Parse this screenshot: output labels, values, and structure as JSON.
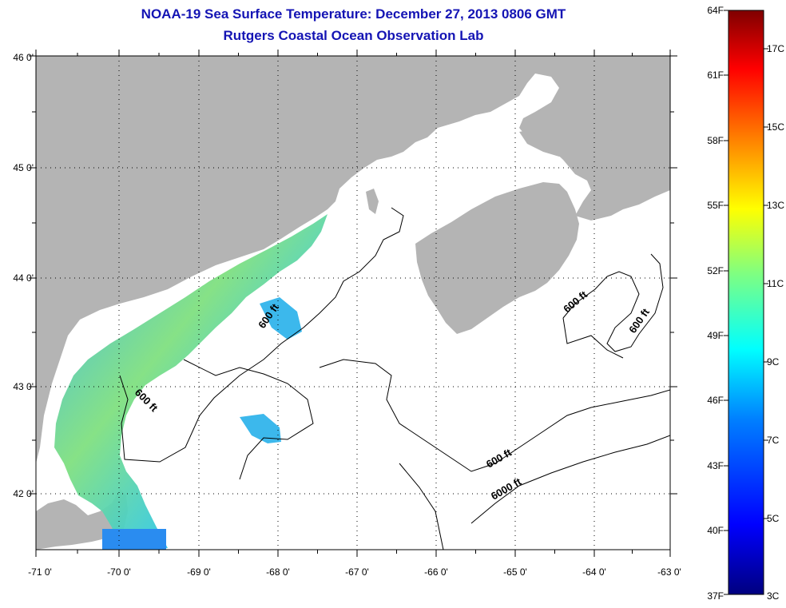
{
  "title": {
    "line1": "NOAA-19 Sea Surface Temperature:  December 27, 2013 0806 GMT",
    "line2": "Rutgers Coastal Ocean Observation Lab"
  },
  "map": {
    "longitude_labels": [
      "-71 0'",
      "-70 0'",
      "-69 0'",
      "-68 0'",
      "-67 0'",
      "-66 0'",
      "-65 0'",
      "-64 0'",
      "-63 0'"
    ],
    "latitude_labels": [
      "46 0'",
      "45 0'",
      "44 0'",
      "43 0'",
      "42 0'"
    ],
    "contour_labels": [
      "600 ft",
      "600 ft",
      "600 ft",
      "600 ft",
      "600 ft",
      "6000 ft"
    ],
    "colors": {
      "land": "#b4b4b4",
      "ocean": "#ffffff",
      "contour": "#000000",
      "grid": "#000000"
    }
  },
  "colorbar": {
    "fahrenheit_labels": [
      "64F",
      "61F",
      "58F",
      "55F",
      "52F",
      "49F",
      "46F",
      "43F",
      "40F",
      "37F"
    ],
    "celsius_labels": [
      "17C",
      "15C",
      "13C",
      "11C",
      "9C",
      "7C",
      "5C",
      "3C"
    ],
    "gradient_stops": [
      "#00007f",
      "#0000ff",
      "#0080ff",
      "#00ffff",
      "#80ff80",
      "#ffff00",
      "#ff8000",
      "#ff0000",
      "#7f0000"
    ]
  }
}
